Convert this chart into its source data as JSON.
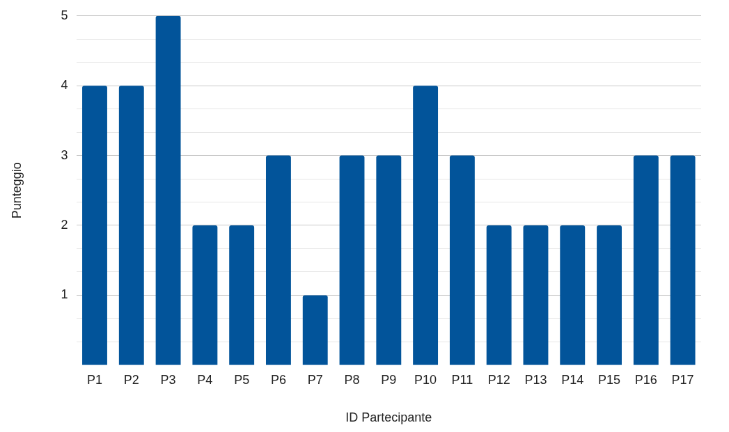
{
  "chart_data": {
    "type": "bar",
    "xlabel": "ID Partecipante",
    "ylabel": "Punteggio",
    "categories": [
      "P1",
      "P2",
      "P3",
      "P4",
      "P5",
      "P6",
      "P7",
      "P8",
      "P9",
      "P10",
      "P11",
      "P12",
      "P13",
      "P14",
      "P15",
      "P16",
      "P17"
    ],
    "values": [
      4,
      4,
      5,
      2,
      2,
      3,
      1,
      3,
      3,
      4,
      3,
      2,
      2,
      2,
      2,
      3,
      3
    ],
    "color": "#02549a",
    "ylim": [
      0,
      5
    ],
    "yticks": [
      {
        "value": 0.333,
        "label": null
      },
      {
        "value": 0.667,
        "label": null
      },
      1,
      {
        "value": 1.333,
        "label": null
      },
      {
        "value": 1.667,
        "label": null
      },
      2,
      {
        "value": 2.333,
        "label": null
      },
      {
        "value": 2.667,
        "label": null
      },
      3,
      {
        "value": 3.333,
        "label": null
      },
      {
        "value": 3.667,
        "label": null
      },
      4,
      {
        "value": 4.333,
        "label": null
      },
      {
        "value": 4.667,
        "label": null
      },
      5
    ],
    "grid": "y"
  }
}
